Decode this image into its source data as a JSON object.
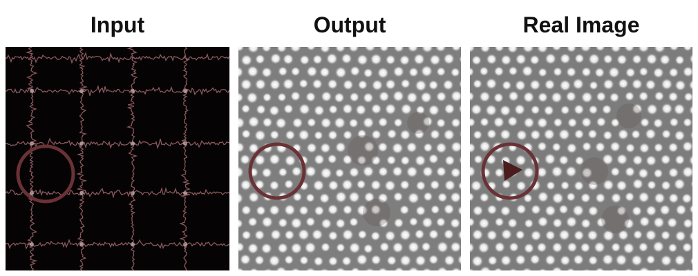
{
  "panels": [
    {
      "id": "input",
      "title": "Input"
    },
    {
      "id": "output",
      "title": "Output"
    },
    {
      "id": "real",
      "title": "Real Image"
    }
  ],
  "colors": {
    "input_background": "#060304",
    "grid_trace": "#8a5a5e",
    "grid_highlight": "#c9b6b6",
    "lattice_background": "#8a8a8a",
    "lattice_dot": "#f2f2f2",
    "defect": "#5a2a2c",
    "circle": "#6a3236"
  }
}
